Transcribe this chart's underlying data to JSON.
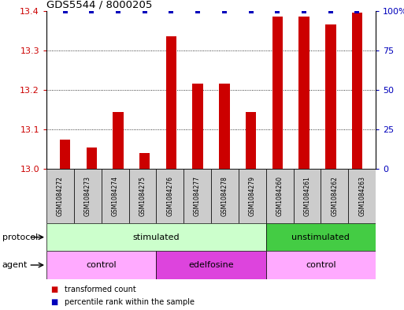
{
  "title": "GDS5544 / 8000205",
  "samples": [
    "GSM1084272",
    "GSM1084273",
    "GSM1084274",
    "GSM1084275",
    "GSM1084276",
    "GSM1084277",
    "GSM1084278",
    "GSM1084279",
    "GSM1084260",
    "GSM1084261",
    "GSM1084262",
    "GSM1084263"
  ],
  "transformed_counts": [
    13.075,
    13.055,
    13.145,
    13.04,
    13.335,
    13.215,
    13.215,
    13.145,
    13.385,
    13.385,
    13.365,
    13.395
  ],
  "percentile_ranks": [
    100,
    100,
    100,
    100,
    100,
    100,
    100,
    100,
    100,
    100,
    100,
    100
  ],
  "ylim_left": [
    13.0,
    13.4
  ],
  "yticks_left": [
    13.0,
    13.1,
    13.2,
    13.3,
    13.4
  ],
  "yticks_right": [
    0,
    25,
    50,
    75,
    100
  ],
  "bar_color": "#cc0000",
  "dot_color": "#0000bb",
  "protocol_groups": [
    {
      "label": "stimulated",
      "start": 0,
      "end": 8,
      "color": "#ccffcc"
    },
    {
      "label": "unstimulated",
      "start": 8,
      "end": 12,
      "color": "#44cc44"
    }
  ],
  "agent_groups": [
    {
      "label": "control",
      "start": 0,
      "end": 4,
      "color": "#ffaaff"
    },
    {
      "label": "edelfosine",
      "start": 4,
      "end": 8,
      "color": "#dd44dd"
    },
    {
      "label": "control",
      "start": 8,
      "end": 12,
      "color": "#ffaaff"
    }
  ],
  "legend_items": [
    {
      "label": "transformed count",
      "color": "#cc0000"
    },
    {
      "label": "percentile rank within the sample",
      "color": "#0000bb"
    }
  ],
  "protocol_label": "protocol",
  "agent_label": "agent",
  "sample_box_color": "#cccccc",
  "grid_color": "black",
  "ytick_label_fontsize": 8,
  "bar_width": 0.4
}
